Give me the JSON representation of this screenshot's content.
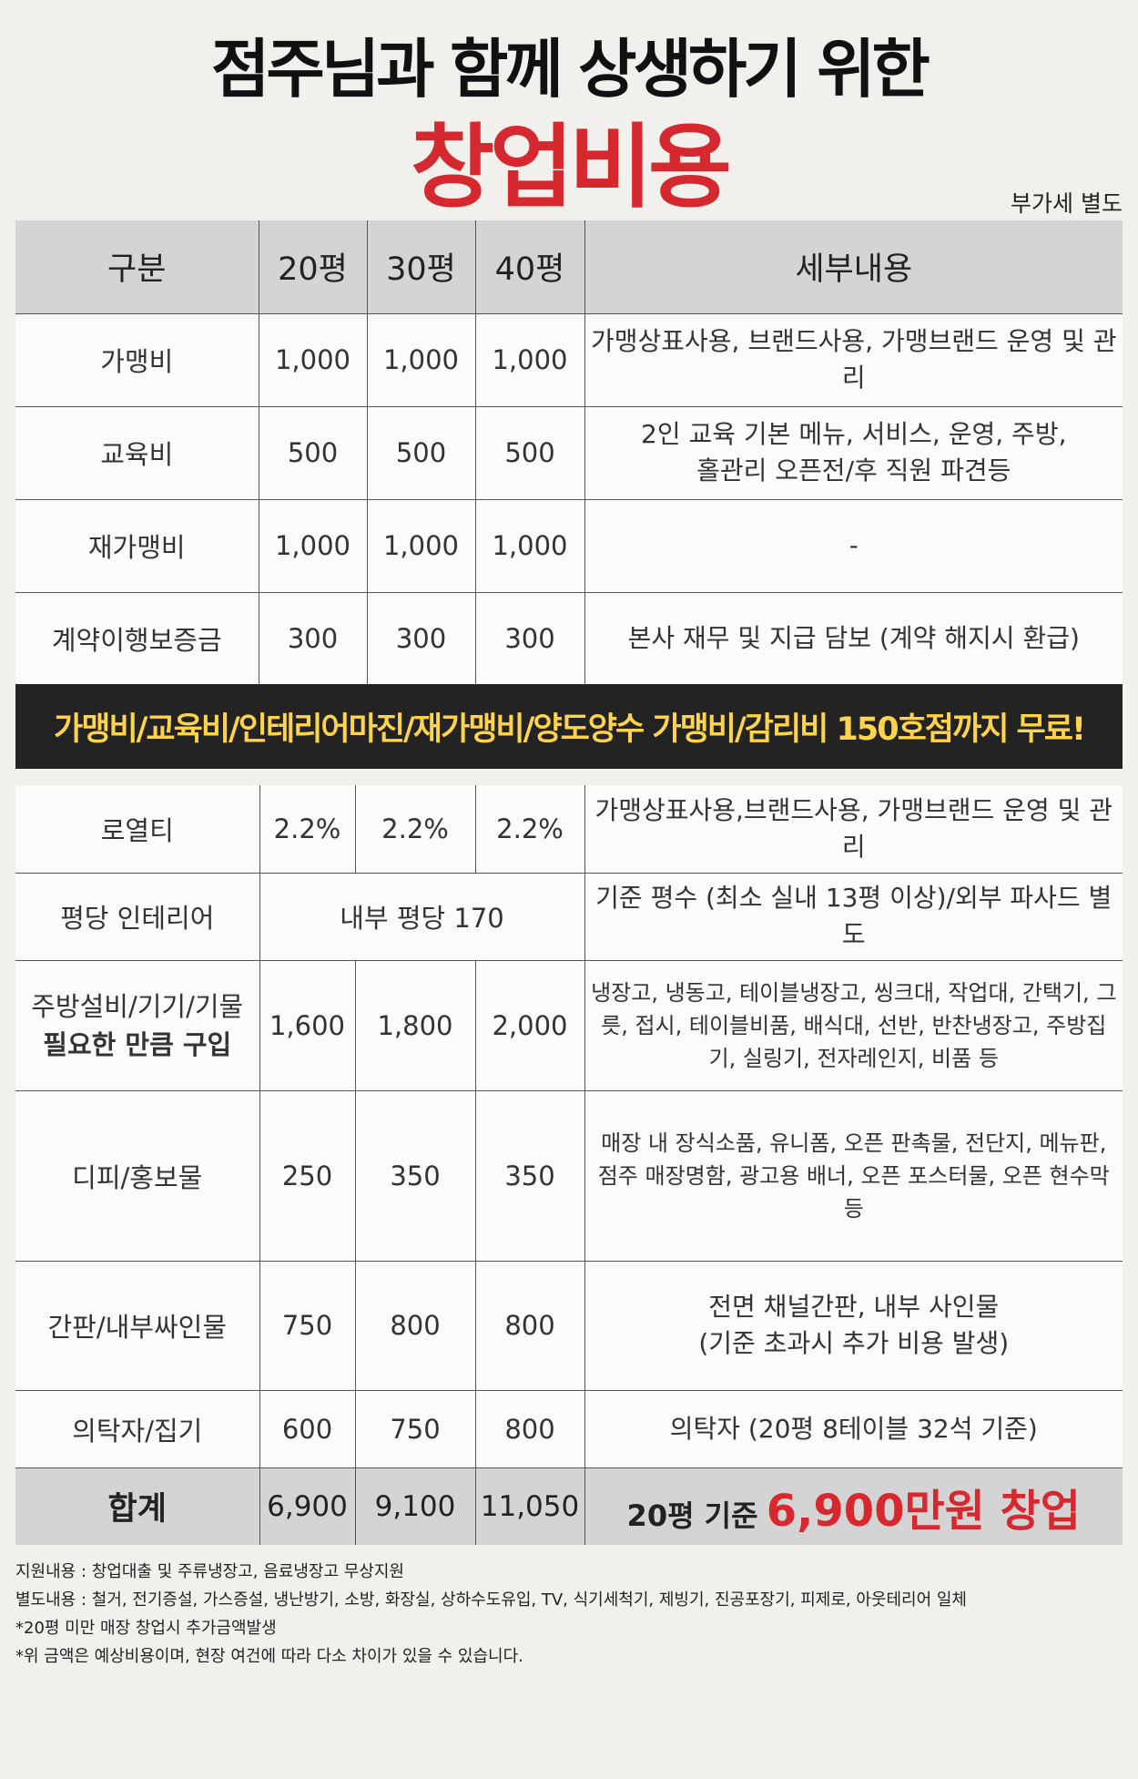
{
  "title": {
    "line1": "점주님과 함께 상생하기 위한",
    "line2": "창업비용",
    "vat_note": "부가세 별도"
  },
  "header": {
    "category": "구분",
    "col20": "20평",
    "col30": "30평",
    "col40": "40평",
    "details": "세부내용"
  },
  "rows_top": [
    {
      "name": "가맹비",
      "v20": "1,000",
      "v30": "1,000",
      "v40": "1,000",
      "detail": [
        "가맹상표사용, 브랜드사용, 가맹브랜드 운영 및 관리"
      ]
    },
    {
      "name": "교육비",
      "v20": "500",
      "v30": "500",
      "v40": "500",
      "detail": [
        "2인 교육 기본 메뉴, 서비스, 운영, 주방,",
        "홀관리 오픈전/후 직원 파견등"
      ]
    },
    {
      "name": "재가맹비",
      "v20": "1,000",
      "v30": "1,000",
      "v40": "1,000",
      "detail": [
        "-"
      ]
    },
    {
      "name": "계약이행보증금",
      "v20": "300",
      "v30": "300",
      "v40": "300",
      "detail": [
        "본사 재무 및 지급 담보 (계약 해지시 환급)"
      ]
    }
  ],
  "banner": "가맹비/교육비/인테리어마진/재가맹비/양도양수 가맹비/감리비 150호점까지 무료!",
  "rows_bottom": {
    "royalty": {
      "name": "로열티",
      "v20": "2.2%",
      "v30": "2.2%",
      "v40": "2.2%",
      "detail": "가맹상표사용,브랜드사용, 가맹브랜드 운영 및 관리"
    },
    "interior": {
      "name": "평당 인테리어",
      "value": "내부 평당 170",
      "detail": "기준 평수 (최소 실내 13평 이상)/외부 파사드 별도"
    },
    "kitchen": {
      "name_line1": "주방설비/기기/기물",
      "name_line2": "필요한 만큼 구입",
      "v20": "1,600",
      "v30": "1,800",
      "v40": "2,000",
      "detail": "냉장고, 냉동고, 테이블냉장고, 씽크대, 작업대, 간택기, 그릇, 접시, 테이블비품, 배식대, 선반, 반찬냉장고, 주방집기, 실링기, 전자레인지, 비품 등"
    },
    "promo": {
      "name": "디피/홍보물",
      "v20": "250",
      "v30": "350",
      "v40": "350",
      "detail": "매장 내 장식소품, 유니폼, 오픈 판촉물, 전단지, 메뉴판, 점주 매장명함, 광고용 배너, 오픈 포스터물, 오픈 현수막 등"
    },
    "signage": {
      "name": "간판/내부싸인물",
      "v20": "750",
      "v30": "800",
      "v40": "800",
      "detail_line1": "전면 채널간판, 내부 사인물",
      "detail_line2": "(기준 초과시 추가 비용 발생)"
    },
    "furniture": {
      "name": "의탁자/집기",
      "v20": "600",
      "v30": "750",
      "v40": "800",
      "detail": "의탁자 (20평 8테이블 32석 기준)"
    },
    "total": {
      "name": "합계",
      "v20": "6,900",
      "v30": "9,100",
      "v40": "11,050",
      "detail_lead": "20평 기준",
      "detail_highlight": "6,900만원 창업"
    }
  },
  "notes": [
    "지원내용 : 창업대출 및 주류냉장고, 음료냉장고 무상지원",
    "별도내용 : 철거, 전기증설, 가스증설, 냉난방기, 소방, 화장실, 상하수도유입, TV, 식기세척기, 제빙기, 진공포장기, 피제로, 아웃테리어 일체",
    "*20평 미만 매장 창업시 추가금액발생",
    "*위 금액은 예상비용이며, 현장 여건에 따라 다소 차이가 있을 수 있습니다."
  ],
  "colors": {
    "accent_red": "#d6282f",
    "banner_bg": "#232323",
    "banner_text": "#ffd34a",
    "header_bg": "#d4d4d4"
  }
}
